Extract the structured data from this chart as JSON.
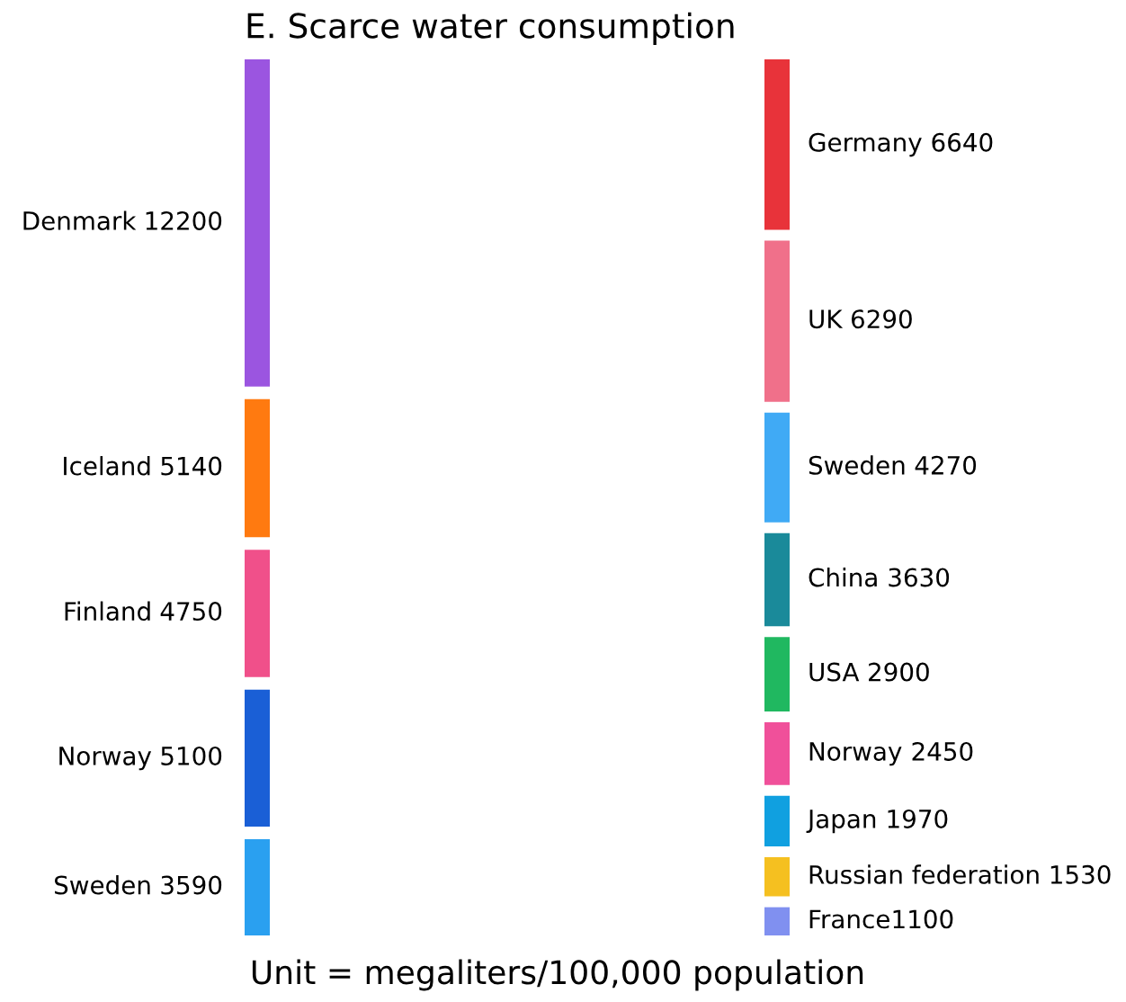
{
  "chart_data": [
    {
      "type": "other",
      "title": "E. Scarce water consumption",
      "categories": [
        "Denmark ",
        "Iceland ",
        "Finland ",
        "Norway ",
        "Sweden "
      ],
      "values": [
        12200,
        5140,
        4750,
        5100,
        3590
      ],
      "value_labels": [
        "12200",
        "5140",
        "4750",
        "5100",
        "3590"
      ],
      "colors": [
        "#9b55e0",
        "#ff7a10",
        "#f0508a",
        "#1a5fd6",
        "#2aa0f0"
      ]
    },
    {
      "type": "other",
      "annotations": [
        "Unit = megaliters/100,000 population"
      ],
      "categories": [
        "Germany ",
        "UK ",
        "Sweden ",
        "China ",
        "USA ",
        "Norway ",
        "Japan ",
        "Russian federation ",
        "France"
      ],
      "values": [
        6640,
        6290,
        4270,
        3630,
        2900,
        2450,
        1970,
        1530,
        1100
      ],
      "value_labels": [
        "6640",
        "6290",
        "4270",
        "3630",
        "2900",
        "2450",
        "1970",
        "1530",
        "1100"
      ],
      "colors": [
        "#e8333a",
        "#f0708a",
        "#40aaf5",
        "#1a8a9a",
        "#20b860",
        "#f0509a",
        "#10a0e0",
        "#f5c020",
        "#8090f0"
      ]
    }
  ]
}
